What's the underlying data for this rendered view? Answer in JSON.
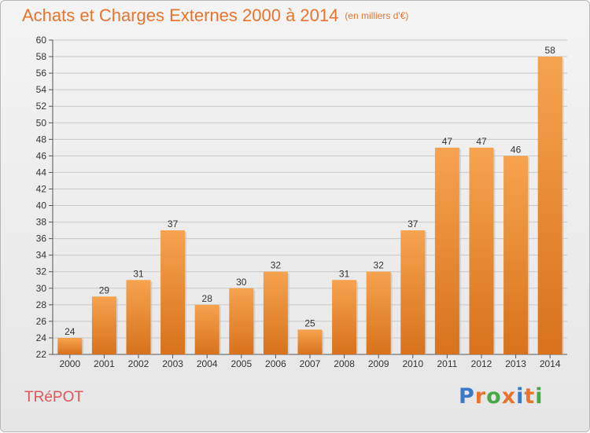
{
  "chart_data": {
    "type": "bar",
    "title": "Achats et Charges Externes 2000 à 2014",
    "subtitle": "(en milliers d'€)",
    "categories": [
      "2000",
      "2001",
      "2002",
      "2003",
      "2004",
      "2005",
      "2006",
      "2007",
      "2008",
      "2009",
      "2010",
      "2011",
      "2012",
      "2013",
      "2014"
    ],
    "values": [
      24,
      29,
      31,
      37,
      28,
      30,
      32,
      25,
      31,
      32,
      37,
      47,
      47,
      46,
      58
    ],
    "ylim": [
      22,
      60
    ],
    "yticks": [
      22,
      24,
      26,
      28,
      30,
      32,
      34,
      36,
      38,
      40,
      42,
      44,
      46,
      48,
      50,
      52,
      54,
      56,
      58,
      60
    ],
    "grid": true,
    "bar_color_top": "#f6a34f",
    "bar_color_bottom": "#d8721c"
  },
  "footer": {
    "commune": "TRéPOT",
    "logo_text": "Proxiti",
    "logo_colors": [
      "#3a78c8",
      "#e8742e",
      "#4aa84a",
      "#e8742e",
      "#3a78c8",
      "#e8742e",
      "#4aa84a"
    ]
  }
}
